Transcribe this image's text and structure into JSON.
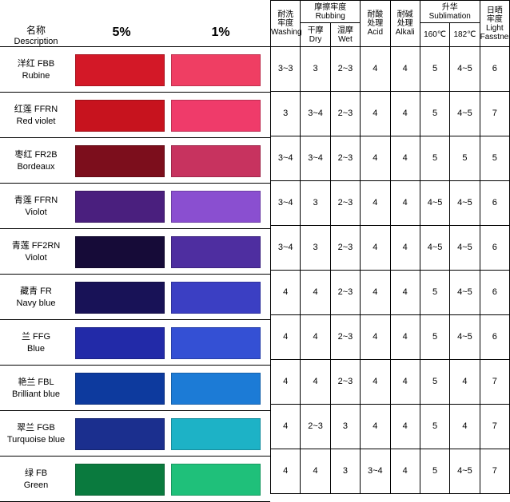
{
  "leftHeader": {
    "desc_cn": "名称",
    "desc_en": "Description",
    "pct5": "5%",
    "pct1": "1%"
  },
  "colors": [
    {
      "cn": "洋红 FBB",
      "en": "Rubine",
      "c5": "#d31827",
      "c1": "#ef3e63"
    },
    {
      "cn": "红莲 FFRN",
      "en": "Red violet",
      "c5": "#c7131e",
      "c1": "#ef3b6a"
    },
    {
      "cn": "枣红 FR2B",
      "en": "Bordeaux",
      "c5": "#7c0e1c",
      "c1": "#c7335f"
    },
    {
      "cn": "青莲 FFRN",
      "en": "Violot",
      "c5": "#4a1f7e",
      "c1": "#8a4fd0"
    },
    {
      "cn": "青莲 FF2RN",
      "en": "Violot",
      "c5": "#160b38",
      "c1": "#4e2ea0"
    },
    {
      "cn": "藏青 FR",
      "en": "Navy blue",
      "c5": "#181257",
      "c1": "#3b3fc3"
    },
    {
      "cn": "兰 FFG",
      "en": "Blue",
      "c5": "#222aa8",
      "c1": "#3450d4"
    },
    {
      "cn": "艳兰 FBL",
      "en": "Brilliant blue",
      "c5": "#0d3a9e",
      "c1": "#1c7bd6"
    },
    {
      "cn": "翠兰 FGB",
      "en": "Turquoise blue",
      "c5": "#1b2f8e",
      "c1": "#1db2c6"
    },
    {
      "cn": "绿 FB",
      "en": "Green",
      "c5": "#0a7a3e",
      "c1": "#1fc07a"
    }
  ],
  "propHeader": {
    "wash_cn": "耐洗",
    "wash_cn2": "牢度",
    "wash_en": "Washing",
    "rub_cn": "摩擦牢度",
    "rub_en": "Rubbing",
    "dry_cn": "干摩",
    "dry_en": "Dry",
    "wet_cn": "湿摩",
    "wet_en": "Wet",
    "acid_cn": "耐酸",
    "acid_cn2": "处理",
    "acid_en": "Acid",
    "alk_cn": "耐碱",
    "alk_cn2": "处理",
    "alk_en": "Alkali",
    "sub_cn": "升华",
    "sub_en": "Sublimation",
    "t160": "160℃",
    "t182": "182℃",
    "light_cn": "日晒",
    "light_cn2": "牢度",
    "light_en": "Light",
    "light_en2": "Fasstness"
  },
  "props": [
    [
      "3~3",
      "3",
      "2~3",
      "4",
      "4",
      "5",
      "4~5",
      "6"
    ],
    [
      "3",
      "3~4",
      "2~3",
      "4",
      "4",
      "5",
      "4~5",
      "7"
    ],
    [
      "3~4",
      "3~4",
      "2~3",
      "4",
      "4",
      "5",
      "5",
      "5"
    ],
    [
      "3~4",
      "3",
      "2~3",
      "4",
      "4",
      "4~5",
      "4~5",
      "6"
    ],
    [
      "3~4",
      "3",
      "2~3",
      "4",
      "4",
      "4~5",
      "4~5",
      "6"
    ],
    [
      "4",
      "4",
      "2~3",
      "4",
      "4",
      "5",
      "4~5",
      "6"
    ],
    [
      "4",
      "4",
      "2~3",
      "4",
      "4",
      "5",
      "4~5",
      "6"
    ],
    [
      "4",
      "4",
      "2~3",
      "4",
      "4",
      "5",
      "4",
      "7"
    ],
    [
      "4",
      "2~3",
      "3",
      "4",
      "4",
      "5",
      "4",
      "7"
    ],
    [
      "4",
      "4",
      "3",
      "3~4",
      "4",
      "5",
      "4~5",
      "7"
    ]
  ]
}
